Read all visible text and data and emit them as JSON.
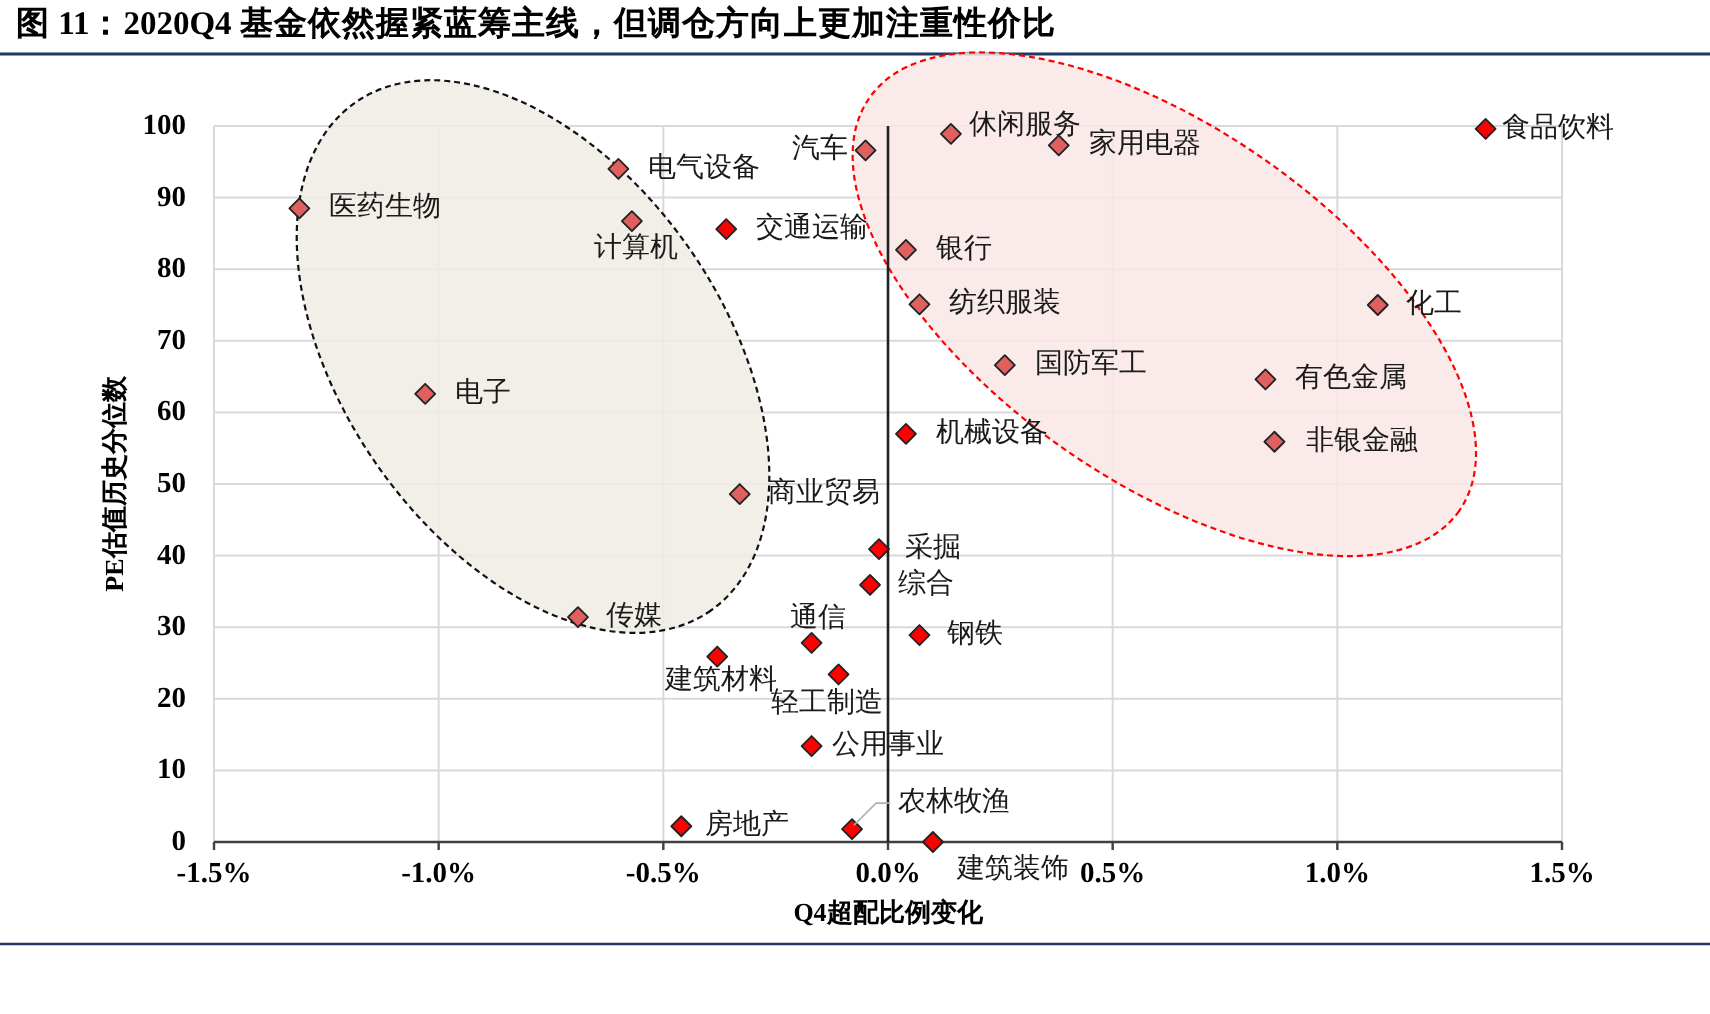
{
  "chart_data": {
    "type": "scatter",
    "title": "图 11：2020Q4 基金依然握紧蓝筹主线，但调仓方向上更加注重性价比",
    "xlabel": "Q4超配比例变化",
    "ylabel": "PE估值历史分位数",
    "xlim": [
      -1.5,
      1.5
    ],
    "ylim": [
      0,
      100
    ],
    "xticks": [
      {
        "value": -1.5,
        "label": "-1.5%"
      },
      {
        "value": -1.0,
        "label": "-1.0%"
      },
      {
        "value": -0.5,
        "label": "-0.5%"
      },
      {
        "value": 0,
        "label": "0.0%"
      },
      {
        "value": 0.5,
        "label": "0.5%"
      },
      {
        "value": 1.0,
        "label": "1.0%"
      },
      {
        "value": 1.5,
        "label": "1.5%"
      }
    ],
    "yticks": [
      0,
      10,
      20,
      30,
      40,
      50,
      60,
      70,
      80,
      90,
      100
    ],
    "grid": true,
    "marker": "diamond",
    "series": [
      {
        "name": "食品饮料",
        "color": "#ff0000",
        "x": [
          1.33
        ],
        "values": [
          99.6
        ]
      },
      {
        "name": "休闲服务",
        "color": "#e06060",
        "x": [
          0.14
        ],
        "values": [
          98.9
        ]
      },
      {
        "name": "家用电器",
        "color": "#e06060",
        "x": [
          0.38
        ],
        "values": [
          97.3
        ]
      },
      {
        "name": "汽车",
        "color": "#e06060",
        "x": [
          -0.05
        ],
        "values": [
          96.6
        ]
      },
      {
        "name": "电气设备",
        "color": "#e06060",
        "x": [
          -0.6
        ],
        "values": [
          94.0
        ]
      },
      {
        "name": "医药生物",
        "color": "#e06060",
        "x": [
          -1.31
        ],
        "values": [
          88.5
        ]
      },
      {
        "name": "计算机",
        "color": "#e06060",
        "x": [
          -0.57
        ],
        "values": [
          86.7
        ]
      },
      {
        "name": "交通运输",
        "color": "#ff0000",
        "x": [
          -0.36
        ],
        "values": [
          85.6
        ]
      },
      {
        "name": "银行",
        "color": "#e06060",
        "x": [
          0.04
        ],
        "values": [
          82.7
        ]
      },
      {
        "name": "纺织服装",
        "color": "#e06060",
        "x": [
          0.07
        ],
        "values": [
          75.1
        ]
      },
      {
        "name": "化工",
        "color": "#e06060",
        "x": [
          1.09
        ],
        "values": [
          75.0
        ]
      },
      {
        "name": "国防军工",
        "color": "#e06060",
        "x": [
          0.26
        ],
        "values": [
          66.6
        ]
      },
      {
        "name": "有色金属",
        "color": "#e06060",
        "x": [
          0.84
        ],
        "values": [
          64.6
        ]
      },
      {
        "name": "电子",
        "color": "#e06060",
        "x": [
          -1.03
        ],
        "values": [
          62.6
        ]
      },
      {
        "name": "机械设备",
        "color": "#ff0000",
        "x": [
          0.04
        ],
        "values": [
          57.0
        ]
      },
      {
        "name": "非银金融",
        "color": "#e06060",
        "x": [
          0.86
        ],
        "values": [
          55.9
        ]
      },
      {
        "name": "商业贸易",
        "color": "#e06060",
        "x": [
          -0.33
        ],
        "values": [
          48.6
        ]
      },
      {
        "name": "采掘",
        "color": "#ff0000",
        "x": [
          -0.02
        ],
        "values": [
          40.9
        ]
      },
      {
        "name": "综合",
        "color": "#ff0000",
        "x": [
          -0.04
        ],
        "values": [
          35.9
        ]
      },
      {
        "name": "传媒",
        "color": "#e06060",
        "x": [
          -0.69
        ],
        "values": [
          31.4
        ]
      },
      {
        "name": "钢铁",
        "color": "#ff0000",
        "x": [
          0.07
        ],
        "values": [
          28.9
        ]
      },
      {
        "name": "通信",
        "color": "#ff0000",
        "x": [
          -0.17
        ],
        "values": [
          27.8
        ]
      },
      {
        "name": "建筑材料",
        "color": "#ff0000",
        "x": [
          -0.38
        ],
        "values": [
          25.9
        ]
      },
      {
        "name": "轻工制造",
        "color": "#ff0000",
        "x": [
          -0.11
        ],
        "values": [
          23.4
        ]
      },
      {
        "name": "公用事业",
        "color": "#ff0000",
        "x": [
          -0.17
        ],
        "values": [
          13.4
        ]
      },
      {
        "name": "房地产",
        "color": "#ff0000",
        "x": [
          -0.46
        ],
        "values": [
          2.2
        ]
      },
      {
        "name": "农林牧渔",
        "color": "#ff0000",
        "x": [
          -0.08
        ],
        "values": [
          1.8
        ]
      },
      {
        "name": "建筑装饰",
        "color": "#ff0000",
        "x": [
          0.1
        ],
        "values": [
          0
        ]
      }
    ]
  }
}
